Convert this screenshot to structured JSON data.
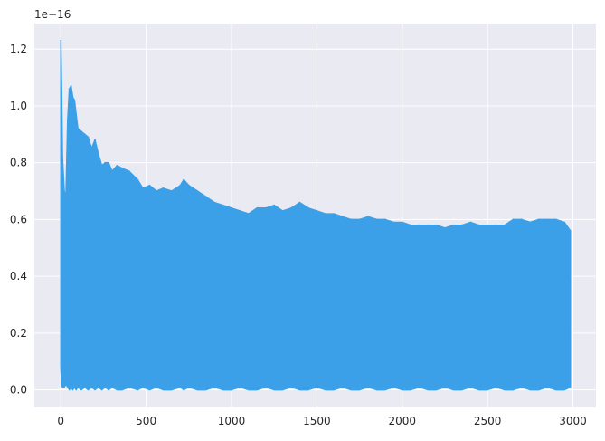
{
  "chart_data": {
    "type": "area",
    "title": "",
    "xlabel": "",
    "ylabel": "",
    "offset_text": "1e−16",
    "xlim": [
      -155,
      3135
    ],
    "ylim": [
      -0.062,
      1.29
    ],
    "xticks": [
      0,
      500,
      1000,
      1500,
      2000,
      2500,
      3000
    ],
    "yticks": [
      0.0,
      0.2,
      0.4,
      0.6,
      0.8,
      1.0,
      1.2
    ],
    "ytick_labels": [
      "0.0",
      "0.2",
      "0.4",
      "0.6",
      "0.8",
      "1.0",
      "1.2"
    ],
    "grid": true,
    "style": "seaborn-darkgrid",
    "colors": {
      "background": "#EAEAF2",
      "grid": "#FFFFFF",
      "series": "#3CA0E8"
    },
    "series": [
      {
        "description": "rapidly oscillating signal; filled band between lower and upper envelopes",
        "x": [
          0,
          5,
          10,
          20,
          30,
          40,
          50,
          60,
          70,
          80,
          90,
          100,
          120,
          140,
          160,
          180,
          200,
          220,
          240,
          260,
          280,
          300,
          330,
          360,
          400,
          450,
          480,
          520,
          560,
          600,
          650,
          700,
          720,
          750,
          800,
          850,
          900,
          950,
          1000,
          1050,
          1100,
          1150,
          1200,
          1250,
          1300,
          1350,
          1400,
          1450,
          1500,
          1550,
          1600,
          1650,
          1700,
          1750,
          1800,
          1850,
          1900,
          1950,
          2000,
          2050,
          2100,
          2150,
          2200,
          2250,
          2300,
          2350,
          2400,
          2450,
          2500,
          2550,
          2600,
          2650,
          2700,
          2750,
          2800,
          2850,
          2900,
          2950,
          2985
        ],
        "upper": [
          1.23,
          1.05,
          0.82,
          0.7,
          0.68,
          0.95,
          1.06,
          1.07,
          1.03,
          1.02,
          0.97,
          0.92,
          0.91,
          0.9,
          0.89,
          0.85,
          0.88,
          0.83,
          0.79,
          0.8,
          0.8,
          0.77,
          0.79,
          0.78,
          0.77,
          0.74,
          0.71,
          0.72,
          0.7,
          0.71,
          0.7,
          0.72,
          0.74,
          0.72,
          0.7,
          0.68,
          0.66,
          0.65,
          0.64,
          0.63,
          0.62,
          0.64,
          0.64,
          0.65,
          0.63,
          0.64,
          0.66,
          0.64,
          0.63,
          0.62,
          0.62,
          0.61,
          0.6,
          0.6,
          0.61,
          0.6,
          0.6,
          0.59,
          0.59,
          0.58,
          0.58,
          0.58,
          0.58,
          0.57,
          0.58,
          0.58,
          0.59,
          0.58,
          0.58,
          0.58,
          0.58,
          0.6,
          0.6,
          0.59,
          0.6,
          0.6,
          0.6,
          0.59,
          0.56
        ],
        "lower": [
          0.08,
          0.02,
          0.01,
          0.01,
          0.02,
          0.01,
          0.0,
          0.01,
          0.0,
          0.01,
          0.0,
          0.01,
          0.0,
          0.01,
          0.0,
          0.01,
          0.0,
          0.01,
          0.0,
          0.01,
          0.0,
          0.01,
          0.0,
          0.0,
          0.01,
          0.0,
          0.01,
          0.0,
          0.01,
          0.0,
          0.0,
          0.01,
          0.0,
          0.01,
          0.0,
          0.0,
          0.01,
          0.0,
          0.0,
          0.01,
          0.0,
          0.0,
          0.01,
          0.0,
          0.0,
          0.01,
          0.0,
          0.0,
          0.01,
          0.0,
          0.0,
          0.01,
          0.0,
          0.0,
          0.01,
          0.0,
          0.0,
          0.01,
          0.0,
          0.0,
          0.01,
          0.0,
          0.0,
          0.01,
          0.0,
          0.0,
          0.01,
          0.0,
          0.0,
          0.01,
          0.0,
          0.0,
          0.01,
          0.0,
          0.0,
          0.01,
          0.0,
          0.0,
          0.01
        ]
      }
    ]
  }
}
